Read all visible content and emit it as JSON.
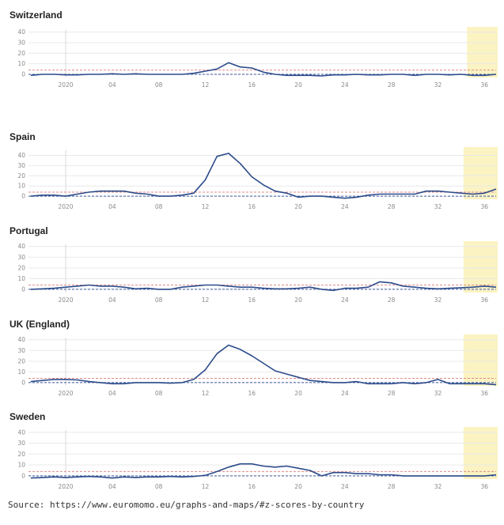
{
  "chart_data": [
    {
      "type": "line",
      "title": "Switzerland",
      "ylim": [
        -3,
        42
      ],
      "yticks": [
        0,
        10,
        20,
        30,
        40
      ],
      "xlim": [
        -1.2,
        39
      ],
      "xtick_labels": [
        {
          "x": 2,
          "label": "2020"
        },
        {
          "x": 6,
          "label": "04"
        },
        {
          "x": 10,
          "label": "08"
        },
        {
          "x": 14,
          "label": "12"
        },
        {
          "x": 18,
          "label": "16"
        },
        {
          "x": 22,
          "label": "20"
        },
        {
          "x": 26,
          "label": "24"
        },
        {
          "x": 30,
          "label": "28"
        },
        {
          "x": 34,
          "label": "32"
        },
        {
          "x": 38,
          "label": "36"
        }
      ],
      "year_divider": 2,
      "recent_period_start": 36.5,
      "baseline": 0,
      "threshold": 4,
      "series": [
        {
          "values": [
            [
              -1,
              -1
            ],
            [
              0,
              0
            ],
            [
              1,
              0
            ],
            [
              2,
              -0.5
            ],
            [
              3,
              -0.5
            ],
            [
              4,
              0
            ],
            [
              5,
              0
            ],
            [
              6,
              0.5
            ],
            [
              7,
              0
            ],
            [
              8,
              0.5
            ],
            [
              9,
              0
            ],
            [
              10,
              0
            ],
            [
              11,
              0
            ],
            [
              12,
              0
            ],
            [
              13,
              1
            ],
            [
              14,
              3
            ],
            [
              15,
              5
            ],
            [
              16,
              11
            ],
            [
              17,
              7
            ],
            [
              18,
              6
            ],
            [
              19,
              2
            ],
            [
              20,
              0
            ],
            [
              21,
              -1
            ],
            [
              22,
              -1
            ],
            [
              23,
              -1
            ],
            [
              24,
              -1.5
            ],
            [
              25,
              -0.5
            ],
            [
              26,
              -0.5
            ],
            [
              27,
              0
            ],
            [
              28,
              -0.5
            ],
            [
              29,
              -0.5
            ],
            [
              30,
              0
            ],
            [
              31,
              0
            ],
            [
              32,
              -1
            ],
            [
              33,
              0
            ],
            [
              34,
              0
            ],
            [
              35,
              -0.5
            ],
            [
              36,
              0
            ],
            [
              37,
              -1
            ],
            [
              38,
              -1
            ],
            [
              39,
              0
            ]
          ]
        }
      ]
    },
    {
      "type": "line",
      "title": "Spain",
      "ylim": [
        -3,
        45
      ],
      "yticks": [
        0,
        10,
        20,
        30,
        40
      ],
      "xlim": [
        -1.2,
        39
      ],
      "xtick_labels": [
        {
          "x": 2,
          "label": "2020"
        },
        {
          "x": 6,
          "label": "04"
        },
        {
          "x": 10,
          "label": "08"
        },
        {
          "x": 14,
          "label": "12"
        },
        {
          "x": 18,
          "label": "16"
        },
        {
          "x": 22,
          "label": "20"
        },
        {
          "x": 26,
          "label": "24"
        },
        {
          "x": 30,
          "label": "28"
        },
        {
          "x": 34,
          "label": "32"
        },
        {
          "x": 38,
          "label": "36"
        }
      ],
      "year_divider": 2,
      "recent_period_start": 36.2,
      "baseline": 0,
      "threshold": 4,
      "series": [
        {
          "values": [
            [
              -1,
              0
            ],
            [
              0,
              1
            ],
            [
              1,
              1
            ],
            [
              2,
              0
            ],
            [
              3,
              2
            ],
            [
              4,
              4
            ],
            [
              5,
              5
            ],
            [
              6,
              5
            ],
            [
              7,
              5
            ],
            [
              8,
              3
            ],
            [
              9,
              2
            ],
            [
              10,
              0
            ],
            [
              11,
              0
            ],
            [
              12,
              1
            ],
            [
              13,
              3
            ],
            [
              14,
              16
            ],
            [
              15,
              39
            ],
            [
              16,
              42
            ],
            [
              17,
              32
            ],
            [
              18,
              19
            ],
            [
              19,
              11
            ],
            [
              20,
              5
            ],
            [
              21,
              3
            ],
            [
              22,
              -1
            ],
            [
              23,
              0
            ],
            [
              24,
              0
            ],
            [
              25,
              -1
            ],
            [
              26,
              -2
            ],
            [
              27,
              -1
            ],
            [
              28,
              1
            ],
            [
              29,
              2
            ],
            [
              30,
              2
            ],
            [
              31,
              2
            ],
            [
              32,
              2
            ],
            [
              33,
              5
            ],
            [
              34,
              5
            ],
            [
              35,
              4
            ],
            [
              36,
              3
            ],
            [
              37,
              2
            ],
            [
              38,
              3
            ],
            [
              39,
              7
            ]
          ]
        }
      ]
    },
    {
      "type": "line",
      "title": "Portugal",
      "ylim": [
        -3,
        42
      ],
      "yticks": [
        0,
        10,
        20,
        30,
        40
      ],
      "xlim": [
        -1.2,
        39
      ],
      "xtick_labels": [
        {
          "x": 2,
          "label": "2020"
        },
        {
          "x": 6,
          "label": "04"
        },
        {
          "x": 10,
          "label": "08"
        },
        {
          "x": 14,
          "label": "12"
        },
        {
          "x": 18,
          "label": "16"
        },
        {
          "x": 22,
          "label": "20"
        },
        {
          "x": 26,
          "label": "24"
        },
        {
          "x": 30,
          "label": "28"
        },
        {
          "x": 34,
          "label": "32"
        },
        {
          "x": 38,
          "label": "36"
        }
      ],
      "year_divider": 2,
      "recent_period_start": 36.2,
      "baseline": 0,
      "threshold": 4,
      "series": [
        {
          "values": [
            [
              -1,
              0
            ],
            [
              0,
              0.5
            ],
            [
              1,
              1
            ],
            [
              2,
              2
            ],
            [
              3,
              3
            ],
            [
              4,
              4
            ],
            [
              5,
              3
            ],
            [
              6,
              3
            ],
            [
              7,
              2
            ],
            [
              8,
              0.5
            ],
            [
              9,
              1
            ],
            [
              10,
              0
            ],
            [
              11,
              0
            ],
            [
              12,
              2
            ],
            [
              13,
              3
            ],
            [
              14,
              4
            ],
            [
              15,
              4
            ],
            [
              16,
              3
            ],
            [
              17,
              2
            ],
            [
              18,
              2
            ],
            [
              19,
              1
            ],
            [
              20,
              0.5
            ],
            [
              21,
              0.5
            ],
            [
              22,
              1
            ],
            [
              23,
              2
            ],
            [
              24,
              0
            ],
            [
              25,
              -1
            ],
            [
              26,
              1
            ],
            [
              27,
              1
            ],
            [
              28,
              2
            ],
            [
              29,
              7
            ],
            [
              30,
              6
            ],
            [
              31,
              3
            ],
            [
              32,
              2
            ],
            [
              33,
              1
            ],
            [
              34,
              0.5
            ],
            [
              35,
              1
            ],
            [
              36,
              1.5
            ],
            [
              37,
              2
            ],
            [
              38,
              3
            ],
            [
              39,
              2
            ]
          ]
        }
      ]
    },
    {
      "type": "line",
      "title": "UK (England)",
      "ylim": [
        -3,
        42
      ],
      "yticks": [
        0,
        10,
        20,
        30,
        40
      ],
      "xlim": [
        -1.2,
        39
      ],
      "xtick_labels": [
        {
          "x": 2,
          "label": "2020"
        },
        {
          "x": 6,
          "label": "04"
        },
        {
          "x": 10,
          "label": "08"
        },
        {
          "x": 14,
          "label": "12"
        },
        {
          "x": 18,
          "label": "16"
        },
        {
          "x": 22,
          "label": "20"
        },
        {
          "x": 26,
          "label": "24"
        },
        {
          "x": 30,
          "label": "28"
        },
        {
          "x": 34,
          "label": "32"
        },
        {
          "x": 38,
          "label": "36"
        }
      ],
      "year_divider": 2,
      "recent_period_start": 36.2,
      "baseline": 0,
      "threshold": 4,
      "series": [
        {
          "values": [
            [
              -1,
              1
            ],
            [
              0,
              2
            ],
            [
              1,
              3
            ],
            [
              2,
              3
            ],
            [
              3,
              2.5
            ],
            [
              4,
              1
            ],
            [
              5,
              0
            ],
            [
              6,
              -1
            ],
            [
              7,
              -1
            ],
            [
              8,
              0
            ],
            [
              9,
              0
            ],
            [
              10,
              0
            ],
            [
              11,
              -0.5
            ],
            [
              12,
              0
            ],
            [
              13,
              3
            ],
            [
              14,
              12
            ],
            [
              15,
              27
            ],
            [
              16,
              35
            ],
            [
              17,
              31
            ],
            [
              18,
              25
            ],
            [
              19,
              18
            ],
            [
              20,
              11
            ],
            [
              21,
              8
            ],
            [
              22,
              5
            ],
            [
              23,
              2
            ],
            [
              24,
              1
            ],
            [
              25,
              0
            ],
            [
              26,
              0
            ],
            [
              27,
              1
            ],
            [
              28,
              -1
            ],
            [
              29,
              -1
            ],
            [
              30,
              -1
            ],
            [
              31,
              0
            ],
            [
              32,
              -1
            ],
            [
              33,
              0
            ],
            [
              34,
              3
            ],
            [
              35,
              -1
            ],
            [
              36,
              -1
            ],
            [
              37,
              -1
            ],
            [
              38,
              -1
            ],
            [
              39,
              -2
            ]
          ]
        }
      ]
    },
    {
      "type": "line",
      "title": "Sweden",
      "ylim": [
        -3,
        42
      ],
      "yticks": [
        0,
        10,
        20,
        30,
        40
      ],
      "xlim": [
        -1.2,
        39
      ],
      "xtick_labels": [
        {
          "x": 2,
          "label": "2020"
        },
        {
          "x": 6,
          "label": "04"
        },
        {
          "x": 10,
          "label": "08"
        },
        {
          "x": 14,
          "label": "12"
        },
        {
          "x": 18,
          "label": "16"
        },
        {
          "x": 22,
          "label": "20"
        },
        {
          "x": 26,
          "label": "24"
        },
        {
          "x": 30,
          "label": "28"
        },
        {
          "x": 34,
          "label": "32"
        },
        {
          "x": 38,
          "label": "36"
        }
      ],
      "year_divider": 2,
      "recent_period_start": 36.2,
      "baseline": 0,
      "threshold": 4,
      "series": [
        {
          "values": [
            [
              -1,
              -2
            ],
            [
              0,
              -1.5
            ],
            [
              1,
              -1
            ],
            [
              2,
              -1.5
            ],
            [
              3,
              -1
            ],
            [
              4,
              -0.5
            ],
            [
              5,
              -1
            ],
            [
              6,
              -2
            ],
            [
              7,
              -1
            ],
            [
              8,
              -1.5
            ],
            [
              9,
              -1
            ],
            [
              10,
              -1
            ],
            [
              11,
              -0.5
            ],
            [
              12,
              -1
            ],
            [
              13,
              -0.5
            ],
            [
              14,
              0.5
            ],
            [
              15,
              4
            ],
            [
              16,
              8
            ],
            [
              17,
              11
            ],
            [
              18,
              11
            ],
            [
              19,
              9
            ],
            [
              20,
              8
            ],
            [
              21,
              9
            ],
            [
              22,
              7
            ],
            [
              23,
              5
            ],
            [
              24,
              0
            ],
            [
              25,
              3
            ],
            [
              26,
              3
            ],
            [
              27,
              2
            ],
            [
              28,
              2
            ],
            [
              29,
              1
            ],
            [
              30,
              1
            ],
            [
              31,
              0
            ],
            [
              32,
              0
            ],
            [
              33,
              0
            ],
            [
              34,
              0
            ],
            [
              35,
              0
            ],
            [
              36,
              0
            ],
            [
              37,
              0
            ],
            [
              38,
              0
            ],
            [
              39,
              1
            ]
          ]
        }
      ]
    }
  ],
  "source": "Source: https://www.euromomo.eu/graphs-and-maps/#z-scores-by-country",
  "colors": {
    "line": "#2b4a8a",
    "baseline_dash": "#3c5aa0",
    "threshold_dash": "#e28a8a",
    "grid": "#e9e9e9",
    "year_divider": "#d8d8d8",
    "recent_period": "#fbf3c2",
    "tick_text": "#8a8a8a"
  }
}
